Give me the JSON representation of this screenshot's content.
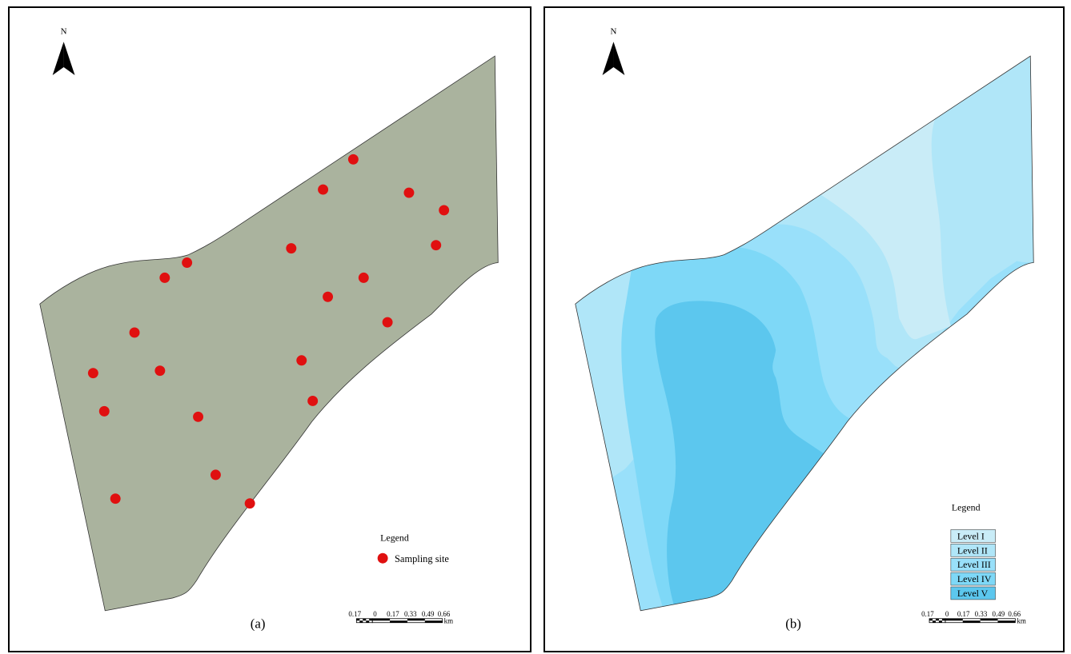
{
  "panel_a": {
    "north_label": "N",
    "caption": "(a)",
    "legend_title": "Legend",
    "legend_item": "Sampling site",
    "area_color": "#aab39e",
    "site_color": "#e01010",
    "scale_ticks": [
      "0.17",
      "0",
      "0.17",
      "0.33",
      "0.49",
      "0.66"
    ],
    "scale_unit": "km"
  },
  "panel_b": {
    "north_label": "N",
    "caption": "(b)",
    "legend_title": "Legend",
    "levels": [
      {
        "label": "Level I",
        "color": "#c9ecf7"
      },
      {
        "label": "Level II",
        "color": "#b0e6f8"
      },
      {
        "label": "Level III",
        "color": "#99e0fa"
      },
      {
        "label": "Level IV",
        "color": "#7ed8f7"
      },
      {
        "label": "Level V",
        "color": "#5cc7ee"
      }
    ],
    "scale_ticks": [
      "0.17",
      "0",
      "0.17",
      "0.33",
      "0.49",
      "0.66"
    ],
    "scale_unit": "km"
  }
}
